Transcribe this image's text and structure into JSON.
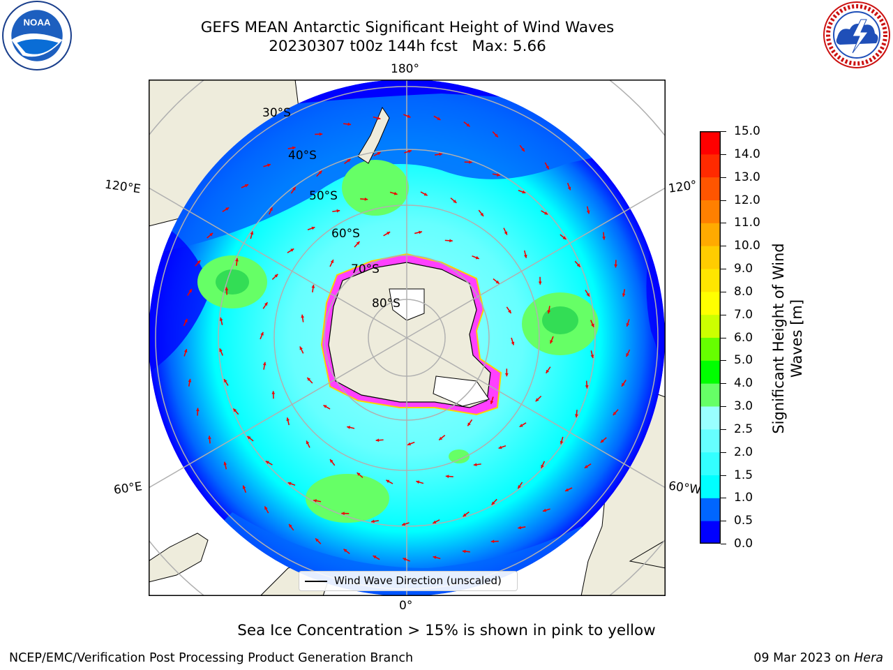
{
  "title": {
    "line1": "GEFS MEAN Antarctic Significant Height of Wind Waves",
    "line2": "20230307 t00z 144h fcst   Max: 5.66"
  },
  "map": {
    "lon_labels": {
      "top": "180°",
      "bottom": "0°",
      "left_upper": "120°E",
      "left_lower": "60°E",
      "right_upper": "120°",
      "right_lower": "60°W"
    },
    "lat_labels": [
      "30°S",
      "40°S",
      "50°S",
      "60°S",
      "70°S",
      "80°S"
    ],
    "legend_text": "Wind Wave Direction (unscaled)",
    "colors": {
      "land": "#eeecdc",
      "coast": "#000000",
      "grid": "#b0b0b0",
      "arrow": "#ee0000",
      "sea_ice": "#ff40ff"
    }
  },
  "colorbar": {
    "label": "Significant Height of Wind Waves [m]",
    "ticks": [
      "0.0",
      "0.5",
      "1.0",
      "1.5",
      "2.0",
      "2.5",
      "3.0",
      "4.0",
      "5.0",
      "6.0",
      "7.0",
      "8.0",
      "9.0",
      "10.0",
      "11.0",
      "12.0",
      "13.0",
      "14.0",
      "15.0"
    ],
    "colors": [
      "#0000ff",
      "#0066ff",
      "#00ffff",
      "#33ffff",
      "#66ffff",
      "#99ffff",
      "#66ff66",
      "#00ff00",
      "#66ff00",
      "#ccff00",
      "#ffff00",
      "#ffe600",
      "#ffcc00",
      "#ffaa00",
      "#ff8000",
      "#ff5500",
      "#ff2a00",
      "#ff0000"
    ]
  },
  "sea_ice_note": "Sea Ice Concentration > 15% is shown in pink to yellow",
  "footer": {
    "left": "NCEP/EMC/Verification Post Processing Product Generation Branch",
    "date": "09 Mar 2023 on",
    "host": "Hera"
  }
}
